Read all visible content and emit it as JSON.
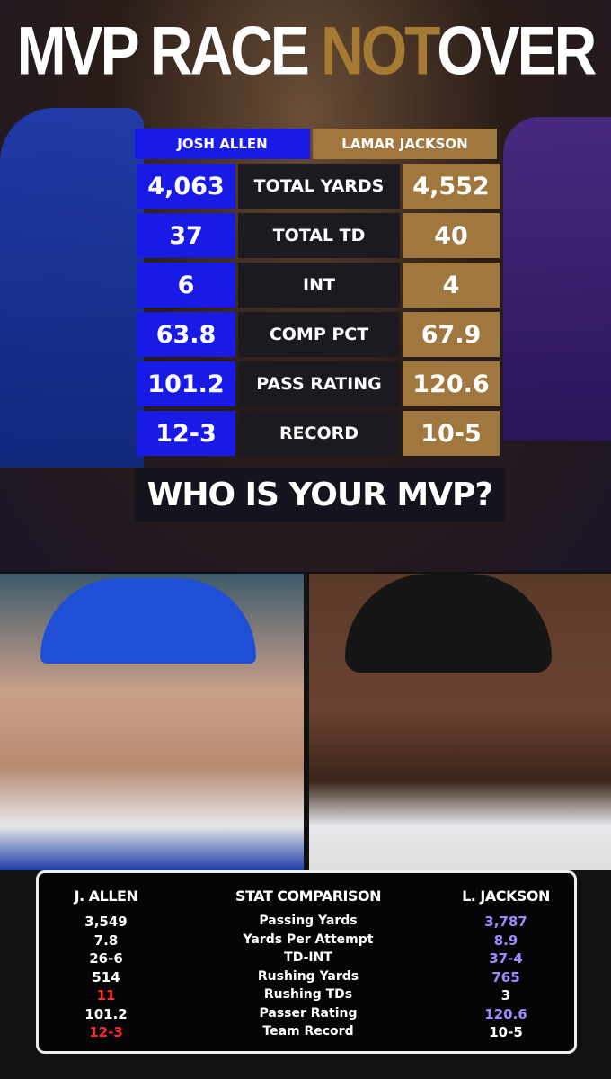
{
  "title": {
    "part1": "MVP RACE",
    "part2": "NOT",
    "part3": "OVER"
  },
  "players": {
    "left": "JOSH ALLEN",
    "right": "LAMAR JACKSON"
  },
  "stats": [
    {
      "left": "4,063",
      "stat": "TOTAL YARDS",
      "right": "4,552"
    },
    {
      "left": "37",
      "stat": "TOTAL TD",
      "right": "40"
    },
    {
      "left": "6",
      "stat": "INT",
      "right": "4"
    },
    {
      "left": "63.8",
      "stat": "COMP PCT",
      "right": "67.9"
    },
    {
      "left": "101.2",
      "stat": "PASS RATING",
      "right": "120.6"
    },
    {
      "left": "12-3",
      "stat": "RECORD",
      "right": "10-5"
    }
  ],
  "question": "WHO IS YOUR MVP?",
  "comparison": {
    "headers": [
      "J. ALLEN",
      "STAT COMPARISON",
      "L. JACKSON"
    ],
    "rows": [
      {
        "left": "3,549",
        "stat": "Passing Yards",
        "right": "3,787",
        "left_color": "#ffffff",
        "right_color": "#9d8cff"
      },
      {
        "left": "7.8",
        "stat": "Yards Per Attempt",
        "right": "8.9",
        "left_color": "#ffffff",
        "right_color": "#9d8cff"
      },
      {
        "left": "26-6",
        "stat": "TD-INT",
        "right": "37-4",
        "left_color": "#ffffff",
        "right_color": "#9d8cff"
      },
      {
        "left": "514",
        "stat": "Rushing Yards",
        "right": "765",
        "left_color": "#ffffff",
        "right_color": "#9d8cff"
      },
      {
        "left": "11",
        "stat": "Rushing TDs",
        "right": "3",
        "left_color": "#ff2a2a",
        "right_color": "#ffffff"
      },
      {
        "left": "101.2",
        "stat": "Passer Rating",
        "right": "120.6",
        "left_color": "#ffffff",
        "right_color": "#9d8cff"
      },
      {
        "left": "12-3",
        "stat": "Team Record",
        "right": "10-5",
        "left_color": "#ff2a2a",
        "right_color": "#ffffff"
      }
    ]
  }
}
